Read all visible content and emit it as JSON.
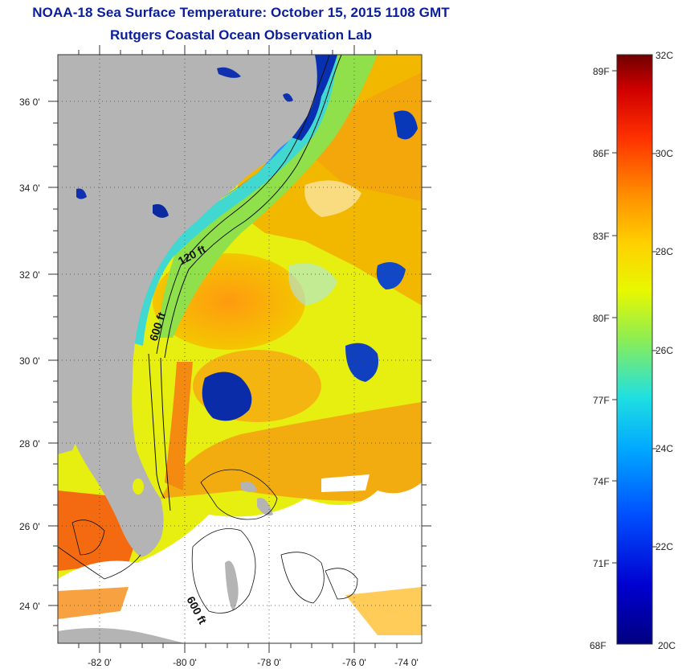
{
  "header": {
    "title": "NOAA-18 Sea Surface Temperature:  October 15, 2015 1108 GMT",
    "subtitle": "Rutgers Coastal Ocean Observation Lab"
  },
  "map": {
    "lon_range": [
      -83,
      -73
    ],
    "lat_range": [
      23,
      37
    ],
    "lon_ticks": [
      "-82 0'",
      "-80 0'",
      "-78 0'",
      "-76 0'",
      "-74 0'"
    ],
    "lat_ticks": [
      "36 0'",
      "34 0'",
      "32 0'",
      "30 0'",
      "28 0'",
      "26 0'",
      "24 0'"
    ],
    "contour_labels": [
      "120 ft",
      "600 ft",
      "600 ft"
    ],
    "land_color": "#b4b4b4",
    "cloud_color": "#ffffff"
  },
  "colorbar": {
    "fahrenheit": [
      "89F",
      "86F",
      "83F",
      "80F",
      "77F",
      "74F",
      "71F",
      "68F"
    ],
    "celsius": [
      "32C",
      "30C",
      "28C",
      "26C",
      "24C",
      "22C",
      "20C"
    ],
    "range_c": [
      20,
      32
    ]
  }
}
